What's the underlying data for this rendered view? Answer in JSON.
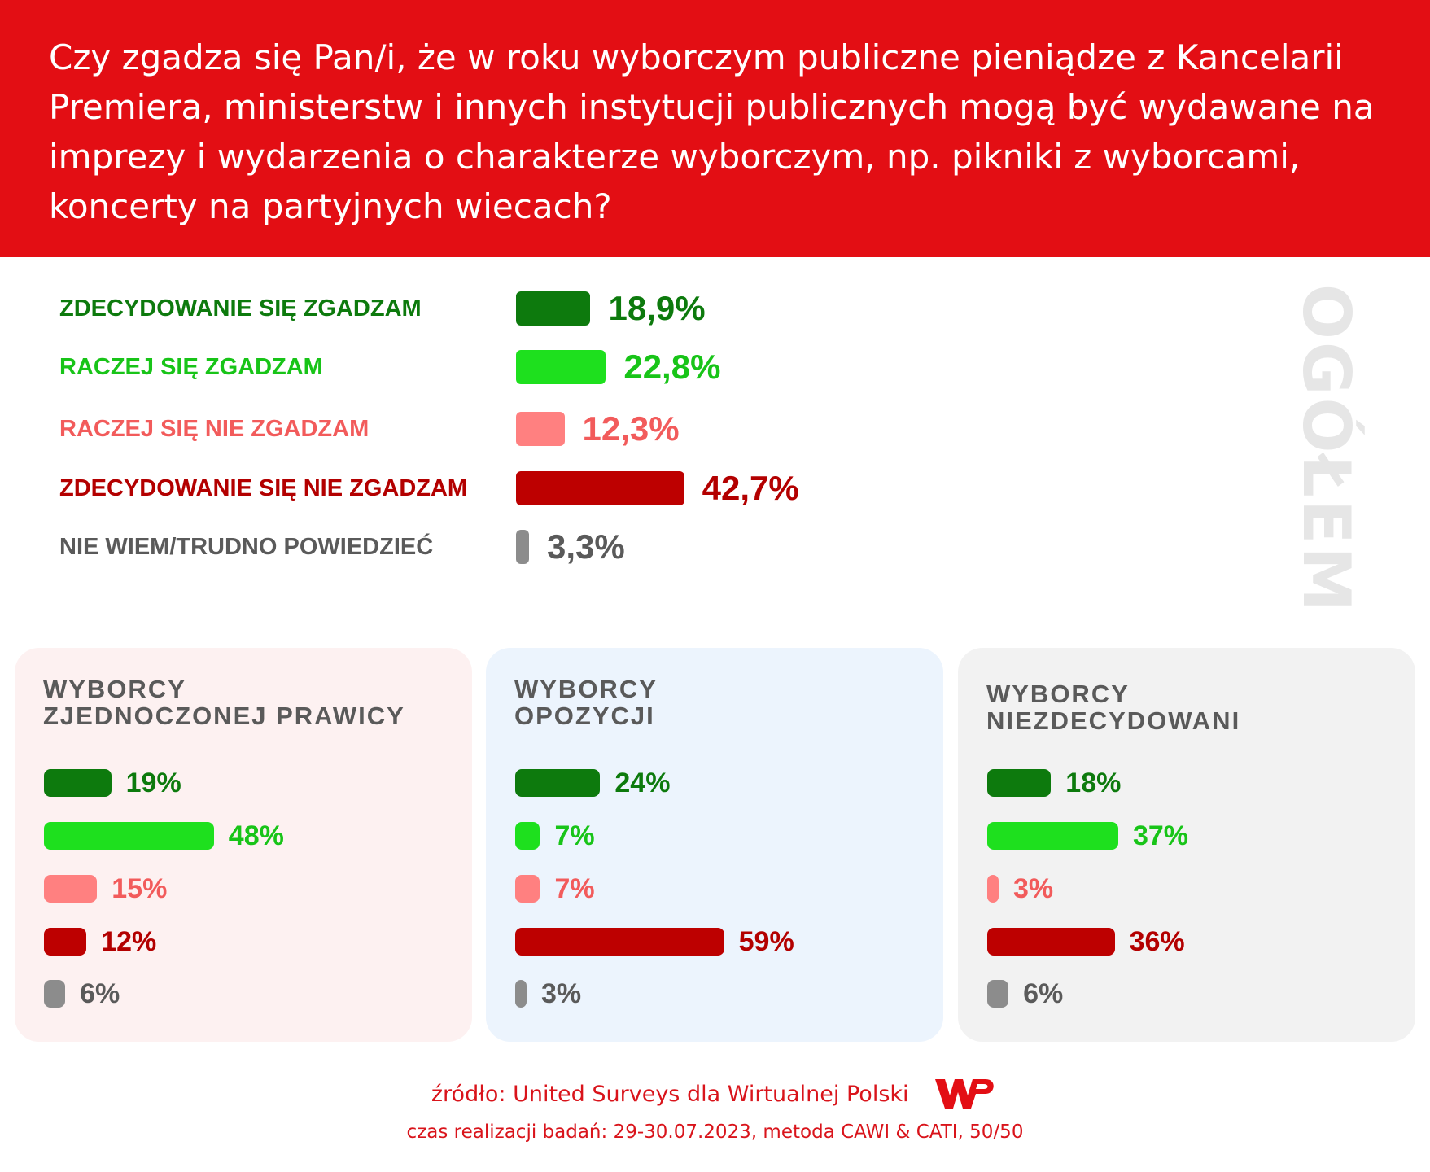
{
  "header": {
    "title": "Czy zgadza się Pan/i, że w roku wyborczym publiczne pieniądze z Kancelarii Premiera, ministerstw i innych instytucji publicznych mogą być wydawane na imprezy i wydarzenia o charakterze wyborczym, np. pikniki z wyborcami, koncerty na partyjnych wiecach?"
  },
  "side_title": "OGÓŁEM",
  "colors": {
    "strong_agree": "#0d7a0d",
    "agree": "#1ee01e",
    "disagree": "#ff8080",
    "strong_disagree": "#bd0000",
    "dont_know": "#8c8c8c",
    "label_strong_agree": "#0d7a0d",
    "label_agree": "#18c418",
    "label_disagree": "#f25b5b",
    "label_strong_disagree": "#b30000",
    "label_dont_know": "#5a5a5a"
  },
  "chart_data": [
    {
      "type": "bar",
      "title": "OGÓŁEM",
      "categories": [
        "ZDECYDOWANIE SIĘ ZGADZAM",
        "RACZEJ SIĘ ZGADZAM",
        "RACZEJ SIĘ NIE ZGADZAM",
        "ZDECYDOWANIE SIĘ NIE ZGADZAM",
        "NIE WIEM/TRUDNO POWIEDZIEĆ"
      ],
      "values": [
        18.9,
        22.8,
        12.3,
        42.7,
        3.3
      ],
      "value_labels": [
        "18,9%",
        "22,8%",
        "12,3%",
        "42,7%",
        "3,3%"
      ]
    },
    {
      "type": "bar",
      "title": "WYBORCY\nZJEDNOCZONEJ PRAWICY",
      "values": [
        19,
        48,
        15,
        12,
        6
      ],
      "value_labels": [
        "19%",
        "48%",
        "15%",
        "12%",
        "6%"
      ]
    },
    {
      "type": "bar",
      "title": "WYBORCY\nOPOZYCJI",
      "values": [
        24,
        7,
        7,
        59,
        3
      ],
      "value_labels": [
        "24%",
        "7%",
        "7%",
        "59%",
        "3%"
      ]
    },
    {
      "type": "bar",
      "title": "WYBORCY\nNIEZDECYDOWANI",
      "values": [
        18,
        37,
        3,
        36,
        6
      ],
      "value_labels": [
        "18%",
        "37%",
        "3%",
        "36%",
        "6%"
      ]
    }
  ],
  "footer": {
    "source": "źródło: United Surveys dla Wirtualnej Polski",
    "logo": "WP",
    "time": "czas realizacji badań: 29-30.07.2023, metoda CAWI & CATI, 50/50"
  }
}
